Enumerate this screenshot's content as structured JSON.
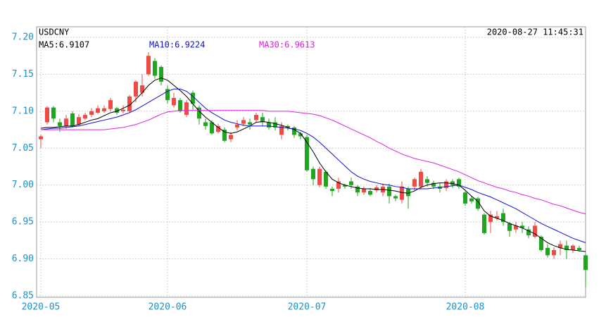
{
  "chart_data": {
    "type": "candlestick",
    "title": "USDCNY",
    "timestamp": "2020-08-27 11:45:31",
    "categories": [
      "2020-05",
      null,
      null,
      null,
      null,
      null,
      null,
      null,
      null,
      null,
      null,
      null,
      null,
      null,
      null,
      null,
      null,
      null,
      null,
      null,
      "2020-06",
      null,
      null,
      null,
      null,
      null,
      null,
      null,
      null,
      null,
      null,
      null,
      null,
      null,
      null,
      null,
      null,
      null,
      null,
      null,
      null,
      null,
      "2020-07",
      null,
      null,
      null,
      null,
      null,
      null,
      null,
      null,
      null,
      null,
      null,
      null,
      null,
      null,
      null,
      null,
      null,
      null,
      null,
      null,
      null,
      null,
      null,
      null,
      "2020-08",
      null,
      null,
      null,
      null,
      null,
      null,
      null,
      null,
      null,
      null,
      null,
      null,
      null,
      null,
      null,
      null,
      null,
      null,
      null
    ],
    "open": [
      7.062,
      7.085,
      7.105,
      7.085,
      7.08,
      7.097,
      7.082,
      7.09,
      7.095,
      7.098,
      7.1,
      7.103,
      7.104,
      7.1,
      7.1,
      7.12,
      7.125,
      7.15,
      7.168,
      7.16,
      7.13,
      7.108,
      7.115,
      7.095,
      7.125,
      7.105,
      7.085,
      7.085,
      7.072,
      7.075,
      7.062,
      7.078,
      7.083,
      7.085,
      7.088,
      7.092,
      7.085,
      7.085,
      7.068,
      7.08,
      7.078,
      7.07,
      7.065,
      7.022,
      7.0,
      7.018,
      6.995,
      6.995,
      7.0,
      7.005,
      6.998,
      6.99,
      6.992,
      6.993,
      6.99,
      6.998,
      6.985,
      6.98,
      6.995,
      6.998,
      6.998,
      7.008,
      7.003,
      6.998,
      6.996,
      7.005,
      7.008,
      6.99,
      6.982,
      6.982,
      6.96,
      6.95,
      6.955,
      6.962,
      6.948,
      6.94,
      6.945,
      6.94,
      6.93,
      6.93,
      6.915,
      6.905,
      6.915,
      6.918,
      6.912,
      6.915,
      6.905
    ],
    "high": [
      7.068,
      7.107,
      7.107,
      7.09,
      7.095,
      7.1,
      7.096,
      7.098,
      7.104,
      7.108,
      7.108,
      7.118,
      7.106,
      7.108,
      7.122,
      7.142,
      7.15,
      7.18,
      7.172,
      7.162,
      7.135,
      7.125,
      7.118,
      7.115,
      7.128,
      7.108,
      7.09,
      7.088,
      7.083,
      7.078,
      7.072,
      7.088,
      7.092,
      7.09,
      7.098,
      7.098,
      7.09,
      7.092,
      7.085,
      7.082,
      7.08,
      7.072,
      7.068,
      7.025,
      7.025,
      7.02,
      6.998,
      7.01,
      7.002,
      7.01,
      7.0,
      6.998,
      6.996,
      7.0,
      7.002,
      7.002,
      6.987,
      7.005,
      6.998,
      7.01,
      7.022,
      7.012,
      7.006,
      7.003,
      7.008,
      7.008,
      7.01,
      6.992,
      6.985,
      6.984,
      6.962,
      6.965,
      6.965,
      6.968,
      6.95,
      6.95,
      6.95,
      6.944,
      6.95,
      6.932,
      6.92,
      6.916,
      6.925,
      6.925,
      6.92,
      6.918,
      6.907
    ],
    "low": [
      7.05,
      7.082,
      7.085,
      7.072,
      7.076,
      7.078,
      7.08,
      7.088,
      7.092,
      7.096,
      7.098,
      7.1,
      7.095,
      7.097,
      7.098,
      7.112,
      7.12,
      7.148,
      7.144,
      7.135,
      7.11,
      7.105,
      7.098,
      7.092,
      7.102,
      7.082,
      7.075,
      7.068,
      7.07,
      7.058,
      7.058,
      7.074,
      7.08,
      7.075,
      7.085,
      7.08,
      7.075,
      7.074,
      7.062,
      7.074,
      7.064,
      7.062,
      7.018,
      7.0,
      6.997,
      6.995,
      6.985,
      6.99,
      6.995,
      6.995,
      6.985,
      6.987,
      6.985,
      6.99,
      6.985,
      6.975,
      6.978,
      6.975,
      6.968,
      6.993,
      6.995,
      6.998,
      6.995,
      6.99,
      6.992,
      6.996,
      6.995,
      6.972,
      6.975,
      6.965,
      6.933,
      6.935,
      6.952,
      6.945,
      6.93,
      6.935,
      6.935,
      6.928,
      6.928,
      6.91,
      6.902,
      6.9,
      6.905,
      6.9,
      6.908,
      6.91,
      6.862
    ],
    "close": [
      7.066,
      7.105,
      7.09,
      7.08,
      7.09,
      7.08,
      7.092,
      7.095,
      7.1,
      7.104,
      7.104,
      7.115,
      7.098,
      7.102,
      7.12,
      7.14,
      7.135,
      7.175,
      7.148,
      7.14,
      7.115,
      7.118,
      7.1,
      7.112,
      7.11,
      7.09,
      7.08,
      7.07,
      7.08,
      7.06,
      7.068,
      7.082,
      7.088,
      7.082,
      7.095,
      7.085,
      7.078,
      7.078,
      7.08,
      7.078,
      7.068,
      7.066,
      7.02,
      7.008,
      7.022,
      6.998,
      6.992,
      7.005,
      6.998,
      7.0,
      6.99,
      6.995,
      6.987,
      6.997,
      6.998,
      6.985,
      6.982,
      6.998,
      6.985,
      7.008,
      7.018,
      7.003,
      6.998,
      6.995,
      7.005,
      7.0,
      6.998,
      6.975,
      6.978,
      6.968,
      6.935,
      6.96,
      6.958,
      6.95,
      6.938,
      6.945,
      6.942,
      6.932,
      6.945,
      6.912,
      6.905,
      6.912,
      6.92,
      6.912,
      6.918,
      6.912,
      6.885
    ],
    "up_color": "#ee4b46",
    "down_color": "#1fa51f",
    "series": [
      {
        "name": "MA5:6.9107",
        "color": "#000000",
        "values": [
          7.077,
          7.078,
          7.078,
          7.079,
          7.08,
          7.08,
          7.082,
          7.085,
          7.088,
          7.09,
          7.094,
          7.098,
          7.1,
          7.104,
          7.108,
          7.116,
          7.125,
          7.135,
          7.142,
          7.145,
          7.142,
          7.135,
          7.128,
          7.12,
          7.11,
          7.1,
          7.092,
          7.085,
          7.078,
          7.072,
          7.07,
          7.072,
          7.076,
          7.08,
          7.085,
          7.086,
          7.085,
          7.083,
          7.081,
          7.078,
          7.075,
          7.07,
          7.058,
          7.045,
          7.03,
          7.018,
          7.008,
          7.003,
          7.0,
          6.998,
          6.996,
          6.995,
          6.995,
          6.994,
          6.994,
          6.993,
          6.992,
          6.99,
          6.989,
          6.992,
          6.997,
          7.0,
          7.002,
          7.003,
          7.003,
          7.002,
          7.0,
          6.993,
          6.985,
          6.978,
          6.965,
          6.958,
          6.955,
          6.952,
          6.948,
          6.945,
          6.942,
          6.938,
          6.934,
          6.928,
          6.922,
          6.918,
          6.915,
          6.913,
          6.912,
          6.911,
          6.91
        ]
      },
      {
        "name": "MA10:6.9224",
        "color": "#1010d0",
        "values": [
          7.075,
          7.076,
          7.077,
          7.077,
          7.078,
          7.079,
          7.08,
          7.082,
          7.084,
          7.086,
          7.088,
          7.09,
          7.092,
          7.095,
          7.098,
          7.102,
          7.107,
          7.112,
          7.117,
          7.122,
          7.127,
          7.13,
          7.13,
          7.127,
          7.12,
          7.112,
          7.104,
          7.098,
          7.093,
          7.088,
          7.085,
          7.083,
          7.081,
          7.08,
          7.08,
          7.08,
          7.08,
          7.079,
          7.078,
          7.077,
          7.076,
          7.074,
          7.07,
          7.065,
          7.058,
          7.05,
          7.042,
          7.034,
          7.026,
          7.018,
          7.012,
          7.008,
          7.005,
          7.003,
          7.001,
          7.0,
          6.998,
          6.997,
          6.995,
          6.995,
          6.995,
          6.995,
          6.996,
          6.997,
          6.998,
          6.999,
          7.0,
          6.997,
          6.994,
          6.99,
          6.987,
          6.984,
          6.98,
          6.976,
          6.972,
          6.968,
          6.963,
          6.958,
          6.953,
          6.948,
          6.944,
          6.94,
          6.936,
          6.932,
          6.928,
          6.925,
          6.922
        ]
      },
      {
        "name": "MA30:6.9613",
        "color": "#e020e0",
        "values": [
          7.075,
          7.075,
          7.075,
          7.075,
          7.075,
          7.075,
          7.075,
          7.075,
          7.075,
          7.075,
          7.075,
          7.076,
          7.077,
          7.078,
          7.08,
          7.082,
          7.085,
          7.088,
          7.092,
          7.096,
          7.099,
          7.1,
          7.101,
          7.101,
          7.101,
          7.101,
          7.101,
          7.101,
          7.101,
          7.101,
          7.101,
          7.101,
          7.101,
          7.101,
          7.101,
          7.101,
          7.1,
          7.1,
          7.1,
          7.1,
          7.099,
          7.098,
          7.097,
          7.096,
          7.094,
          7.091,
          7.088,
          7.084,
          7.08,
          7.076,
          7.072,
          7.068,
          7.064,
          7.059,
          7.055,
          7.05,
          7.046,
          7.042,
          7.039,
          7.036,
          7.034,
          7.032,
          7.03,
          7.027,
          7.024,
          7.021,
          7.018,
          7.014,
          7.01,
          7.006,
          7.003,
          7.0,
          6.997,
          6.995,
          6.992,
          6.99,
          6.987,
          6.985,
          6.982,
          6.98,
          6.977,
          6.974,
          6.972,
          6.969,
          6.966,
          6.963,
          6.961
        ]
      }
    ],
    "ylim": [
      6.85,
      7.2
    ],
    "yticks": [
      6.85,
      {
        "value": 6.9,
        "label": "6.90"
      },
      6.95,
      {
        "value": 7.0,
        "label": "7.00"
      },
      7.05,
      {
        "value": 7.1,
        "label": "7.10"
      },
      7.15,
      {
        "value": 7.2,
        "label": "7.20"
      }
    ],
    "grid": true
  }
}
